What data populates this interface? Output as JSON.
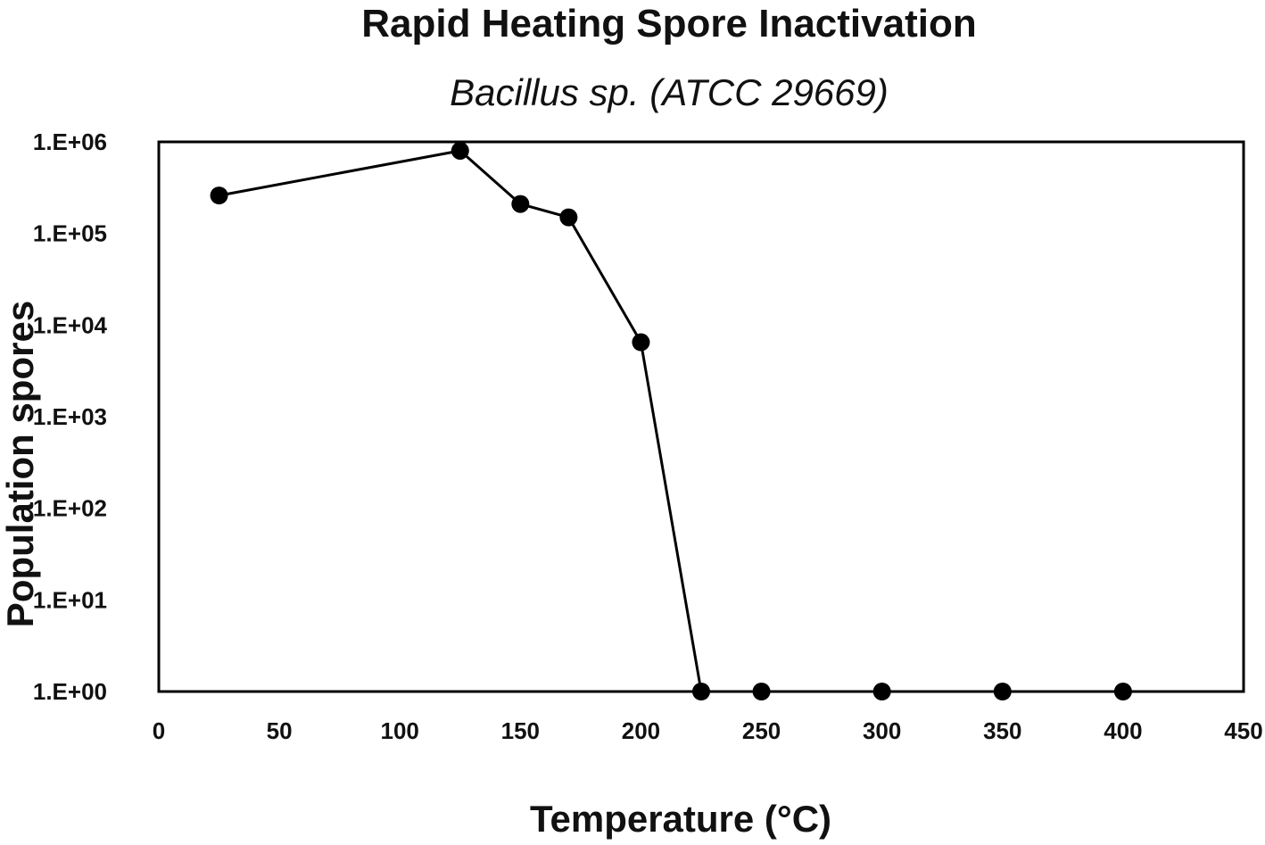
{
  "chart_data": {
    "type": "line",
    "title": "Rapid Heating Spore Inactivation",
    "subtitle": "Bacillus sp. (ATCC 29669)",
    "xlabel": "Temperature (°C)",
    "ylabel": "Population spores",
    "xlim": [
      0,
      450
    ],
    "ylim": [
      1,
      1000000
    ],
    "y_scale": "log",
    "x_ticks": [
      "0",
      "50",
      "100",
      "150",
      "200",
      "250",
      "300",
      "350",
      "400",
      "450"
    ],
    "x_tick_values": [
      0,
      50,
      100,
      150,
      200,
      250,
      300,
      350,
      400,
      450
    ],
    "y_ticks": [
      "1.E+00",
      "1.E+01",
      "1.E+02",
      "1.E+03",
      "1.E+04",
      "1.E+05",
      "1.E+06"
    ],
    "y_tick_values": [
      1,
      10,
      100,
      1000,
      10000,
      100000,
      1000000
    ],
    "grid": false,
    "legend": "none",
    "series": [
      {
        "x": [
          25,
          125,
          150,
          170,
          200,
          225,
          250,
          300,
          350,
          400
        ],
        "y": [
          260000,
          800000,
          210000,
          150000,
          6500,
          1,
          1,
          1,
          1,
          1
        ]
      }
    ],
    "colors": {
      "line": "#000000",
      "marker": "#000000",
      "frame": "#000000"
    }
  }
}
